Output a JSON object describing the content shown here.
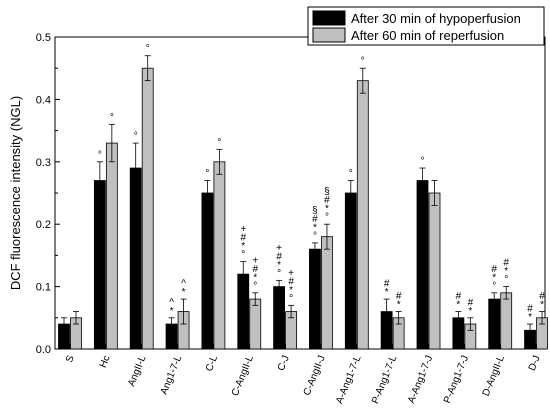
{
  "chart_data": {
    "type": "bar",
    "ylabel": "DCF fluorescence intensity (NGL)",
    "ylim": [
      0,
      0.5
    ],
    "yticks": [
      "0.0",
      "0.1",
      "0.2",
      "0.3",
      "0.4",
      "0.5"
    ],
    "grid": false,
    "legend_position": "top-right",
    "categories": [
      "S",
      "Hc",
      "AngII-L",
      "Ang1-7-L",
      "C-L",
      "C-AngII-L",
      "C-J",
      "C-AngII-J",
      "A-Ang1-7-L",
      "P-Ang1-7-L",
      "A-Ang1-7-J",
      "P-Ang1-7-J",
      "D-AngII-L",
      "D-J"
    ],
    "series": [
      {
        "name": "After 30 min of hypoperfusion",
        "color": "#000000",
        "values": [
          0.04,
          0.27,
          0.29,
          0.04,
          0.25,
          0.12,
          0.1,
          0.16,
          0.25,
          0.06,
          0.27,
          0.05,
          0.08,
          0.03
        ],
        "errors": [
          0.01,
          0.03,
          0.04,
          0.01,
          0.02,
          0.02,
          0.01,
          0.01,
          0.02,
          0.02,
          0.02,
          0.01,
          0.01,
          0.01
        ],
        "markers": [
          "",
          "°",
          "°",
          "^*",
          "°",
          "+#*°",
          "+#*°",
          "§#*°",
          "°",
          "#*",
          "°",
          "#*",
          "#*°",
          "#*"
        ]
      },
      {
        "name": "After 60 min of reperfusion",
        "color": "#c0c0c0",
        "values": [
          0.05,
          0.33,
          0.45,
          0.06,
          0.3,
          0.08,
          0.06,
          0.18,
          0.43,
          0.05,
          0.25,
          0.04,
          0.09,
          0.05
        ],
        "errors": [
          0.01,
          0.03,
          0.02,
          0.02,
          0.02,
          0.01,
          0.01,
          0.02,
          0.02,
          0.01,
          0.02,
          0.01,
          0.01,
          0.01
        ],
        "markers": [
          "",
          "°",
          "°",
          "^*",
          "°",
          "+#*°",
          "+#*°",
          "§#*°",
          "°",
          "#*",
          "",
          "#*",
          "#*°",
          "#*"
        ]
      }
    ]
  }
}
